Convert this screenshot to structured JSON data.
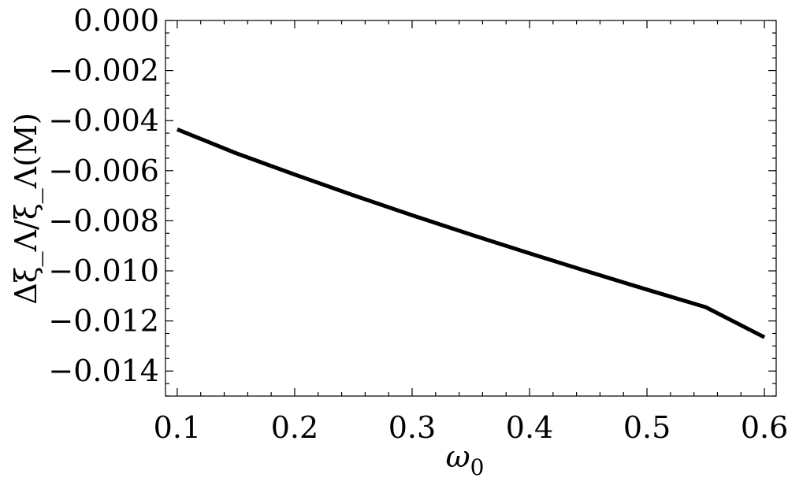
{
  "chart_data": {
    "type": "line",
    "title": "",
    "xlabel": "ω",
    "xlabel_sub": "0",
    "ylabel": "Δξ_Λ/ξ_Λ(M)",
    "xlim": [
      0.09,
      0.61
    ],
    "ylim": [
      -0.015,
      0.0
    ],
    "x_ticks": [
      0.1,
      0.2,
      0.3,
      0.4,
      0.5,
      0.6
    ],
    "x_tick_labels": [
      "0.1",
      "0.2",
      "0.3",
      "0.4",
      "0.5",
      "0.6"
    ],
    "y_ticks": [
      0.0,
      -0.002,
      -0.004,
      -0.006,
      -0.008,
      -0.01,
      -0.012,
      -0.014
    ],
    "y_tick_labels": [
      "0.000",
      "−0.002",
      "−0.004",
      "−0.006",
      "−0.008",
      "−0.010",
      "−0.012",
      "−0.014"
    ],
    "grid": false,
    "series": [
      {
        "color": "#000000",
        "x": [
          0.1,
          0.15,
          0.2,
          0.25,
          0.3,
          0.35,
          0.4,
          0.45,
          0.5,
          0.55,
          0.6
        ],
        "y": [
          -0.00435,
          -0.0053,
          -0.00615,
          -0.00698,
          -0.00778,
          -0.00855,
          -0.0093,
          -0.01003,
          -0.01075,
          -0.01145,
          -0.01265
        ]
      }
    ]
  }
}
